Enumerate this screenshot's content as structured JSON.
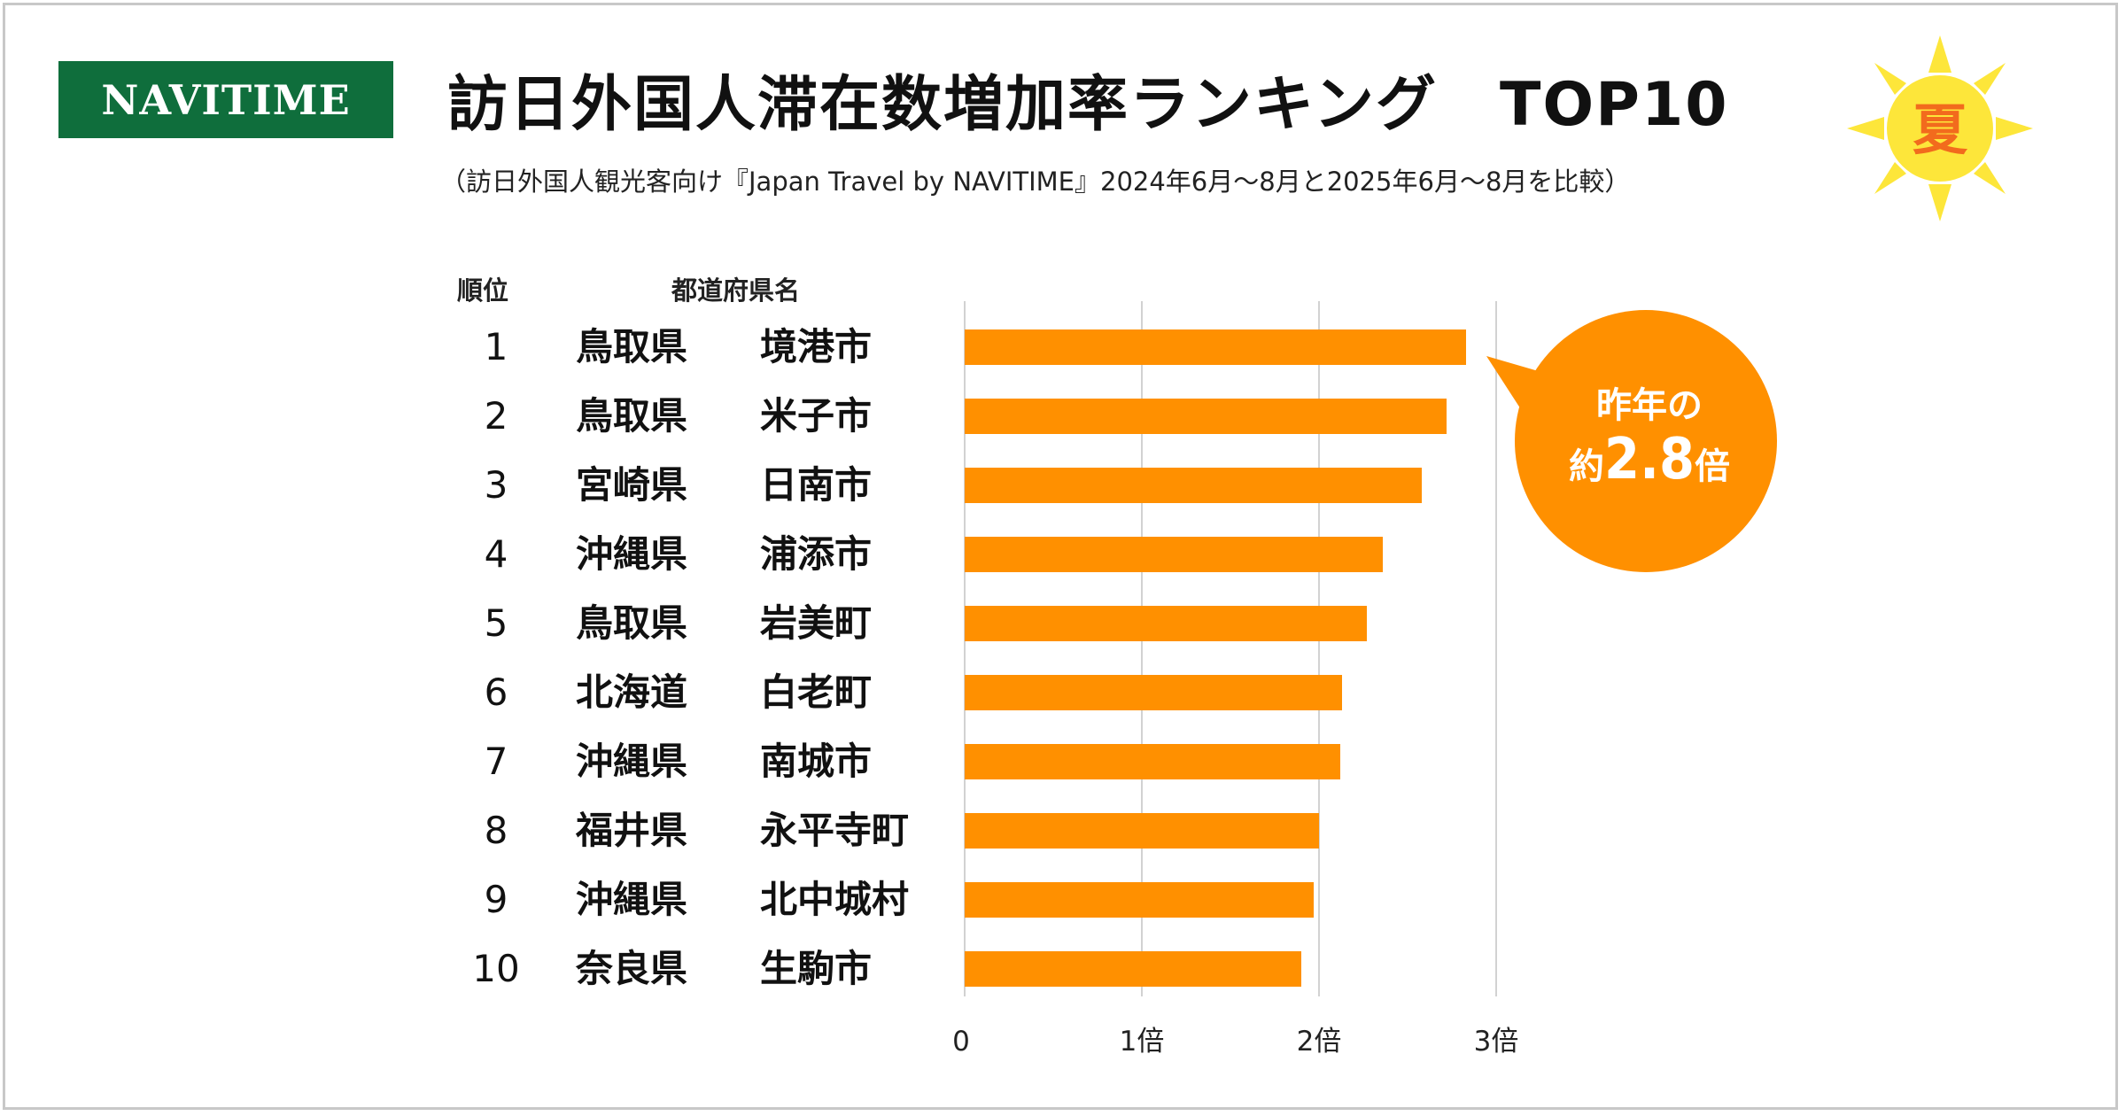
{
  "logo": {
    "text": "NAVITIME"
  },
  "title": "訪日外国人滞在数増加率ランキング　TOP10",
  "subtitle": "（訪日外国人観光客向け『Japan Travel by NAVITIME』2024年6月～8月と2025年6月～8月を比較）",
  "season_badge": {
    "text": "夏",
    "icon": "sun-icon"
  },
  "headers": {
    "rank": "順位",
    "prefecture_city": "都道府県名"
  },
  "callout": {
    "line1": "昨年の",
    "line2_prefix": "約",
    "line2_value": "2.8",
    "line2_suffix": "倍"
  },
  "colors": {
    "bar": "#ff9000",
    "logo_bg": "#0f6e3c",
    "callout": "#ff9000",
    "sun": "#fde63a",
    "badge_text": "#f26b1d"
  },
  "chart_data": {
    "type": "bar",
    "orientation": "horizontal",
    "categories": [
      {
        "rank": "1",
        "prefecture": "鳥取県",
        "city": "境港市"
      },
      {
        "rank": "2",
        "prefecture": "鳥取県",
        "city": "米子市"
      },
      {
        "rank": "3",
        "prefecture": "宮崎県",
        "city": "日南市"
      },
      {
        "rank": "4",
        "prefecture": "沖縄県",
        "city": "浦添市"
      },
      {
        "rank": "5",
        "prefecture": "鳥取県",
        "city": "岩美町"
      },
      {
        "rank": "6",
        "prefecture": "北海道",
        "city": "白老町"
      },
      {
        "rank": "7",
        "prefecture": "沖縄県",
        "city": "南城市"
      },
      {
        "rank": "8",
        "prefecture": "福井県",
        "city": "永平寺町"
      },
      {
        "rank": "9",
        "prefecture": "沖縄県",
        "city": "北中城村"
      },
      {
        "rank": "10",
        "prefecture": "奈良県",
        "city": "生駒市"
      }
    ],
    "values": [
      2.83,
      2.72,
      2.58,
      2.36,
      2.27,
      2.13,
      2.12,
      2.0,
      1.97,
      1.9
    ],
    "xlim": [
      0,
      3
    ],
    "xticks": [
      "0",
      "1倍",
      "2倍",
      "3倍"
    ],
    "grid": true
  }
}
